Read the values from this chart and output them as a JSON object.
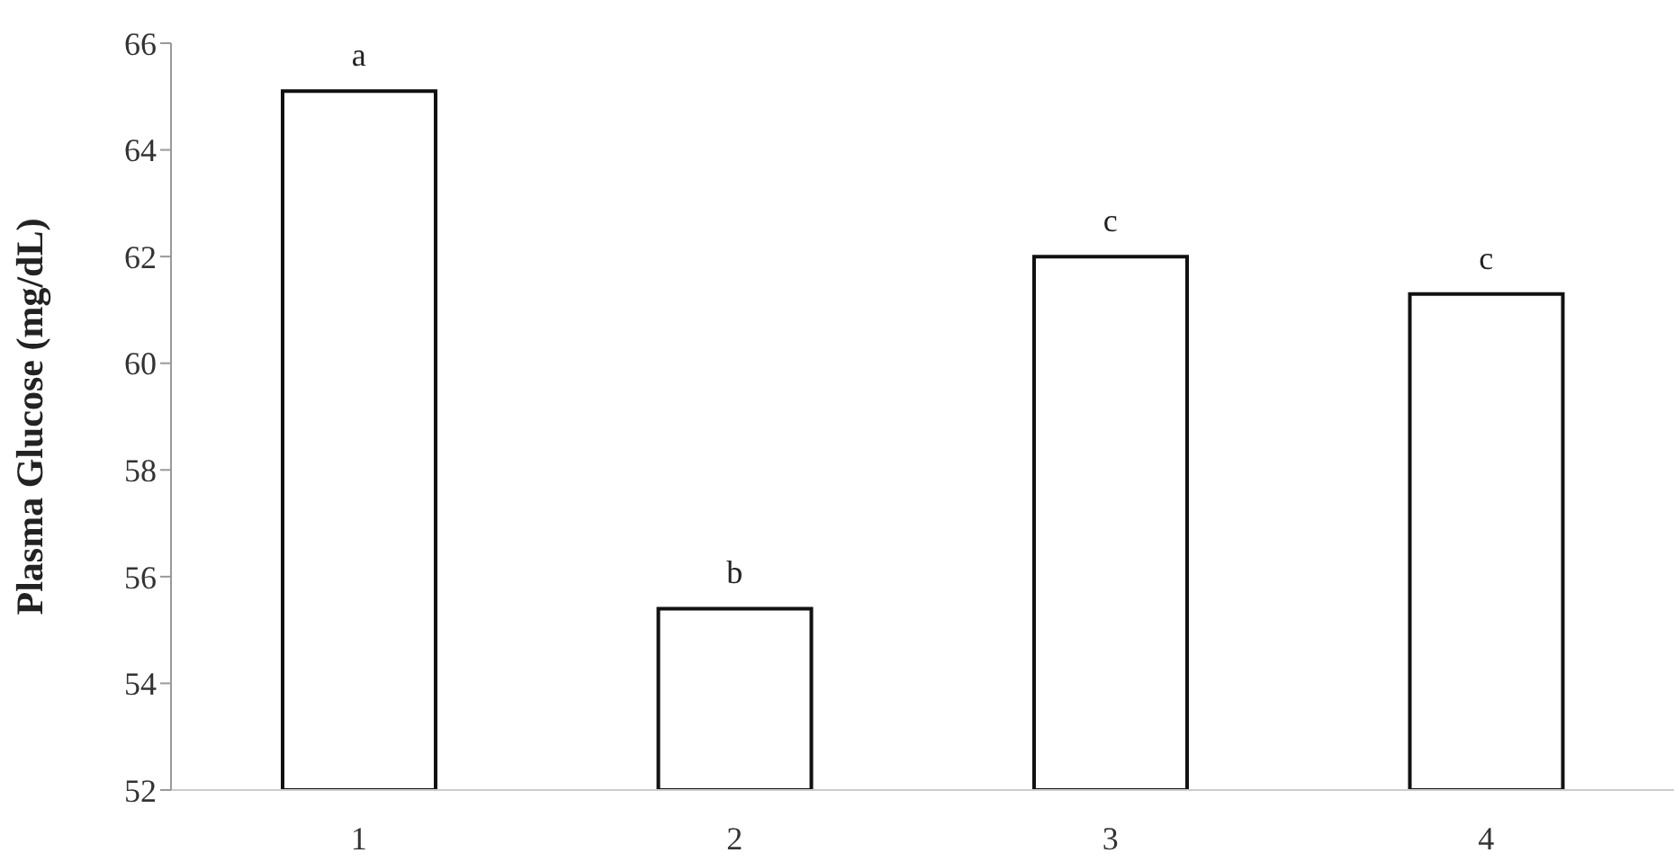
{
  "chart_data": {
    "type": "bar",
    "ylabel": "Plasma Glucose (mg/dL)",
    "categories": [
      "1",
      "2",
      "3",
      "4"
    ],
    "values": [
      65.1,
      55.4,
      62.0,
      61.3
    ],
    "color": "#ffffff",
    "ylim": [
      52,
      66
    ],
    "yticks": [
      52,
      54,
      56,
      58,
      60,
      62,
      64,
      66
    ],
    "annotations": [
      {
        "text": "a",
        "x": "1",
        "y": 65.1
      },
      {
        "text": "b",
        "x": "2",
        "y": 55.4
      },
      {
        "text": "c",
        "x": "3",
        "y": 62.0
      },
      {
        "text": "c",
        "x": "4",
        "y": 61.3
      }
    ]
  }
}
